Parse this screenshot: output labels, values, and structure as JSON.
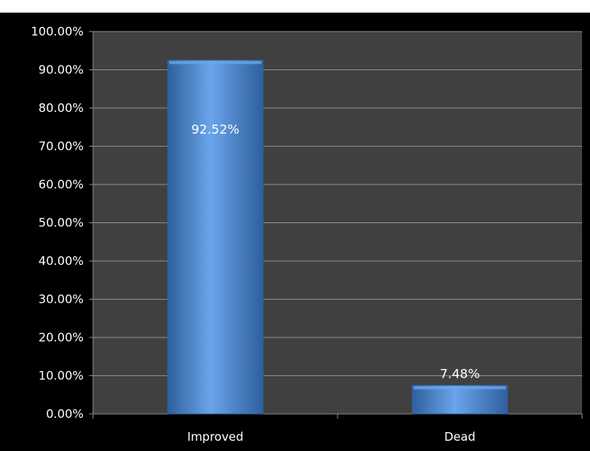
{
  "chart_data": {
    "type": "bar",
    "categories": [
      "Improved",
      "Dead"
    ],
    "values": [
      92.52,
      7.48
    ],
    "data_labels": [
      "92.52%",
      "7.48%"
    ],
    "title": "",
    "xlabel": "",
    "ylabel": "",
    "ylim": [
      0,
      100
    ],
    "y_ticks": [
      0,
      10,
      20,
      30,
      40,
      50,
      60,
      70,
      80,
      90,
      100
    ],
    "y_tick_labels": [
      "0.00%",
      "10.00%",
      "20.00%",
      "30.00%",
      "40.00%",
      "50.00%",
      "60.00%",
      "70.00%",
      "80.00%",
      "90.00%",
      "100.00%"
    ],
    "grid": true,
    "legend": "none",
    "colors": {
      "frame_background": "#000000",
      "plot_background": "#404040",
      "gridline": "#8c8c8c",
      "bar_fill": "#4a88d6",
      "bar_dark": "#2f5f9e",
      "bar_light": "#6aa5ea",
      "text": "#ffffff"
    }
  }
}
